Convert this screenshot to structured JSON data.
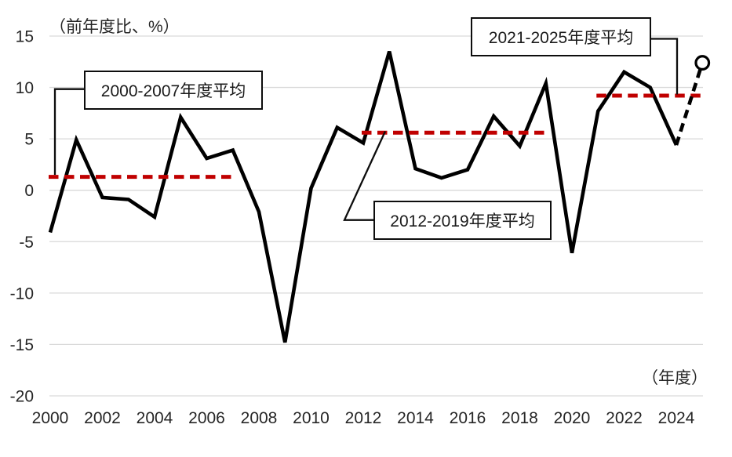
{
  "chart_data": {
    "type": "line",
    "title": "",
    "y_unit_label": "（前年度比、%）",
    "x_unit_label": "（年度）",
    "xlabel": "",
    "ylabel": "",
    "ylim": [
      -20,
      15
    ],
    "yticks": [
      15,
      10,
      5,
      0,
      -5,
      -10,
      -15,
      -20
    ],
    "xticks": [
      2000,
      2002,
      2004,
      2006,
      2008,
      2010,
      2012,
      2014,
      2016,
      2018,
      2020,
      2022,
      2024
    ],
    "grid": "horizontal",
    "legend": "none",
    "years": [
      2000,
      2001,
      2002,
      2003,
      2004,
      2005,
      2006,
      2007,
      2008,
      2009,
      2010,
      2011,
      2012,
      2013,
      2014,
      2015,
      2016,
      2017,
      2018,
      2019,
      2020,
      2021,
      2022,
      2023,
      2024
    ],
    "values": [
      -4.1,
      4.9,
      -0.7,
      -0.9,
      -2.6,
      7.1,
      3.1,
      3.9,
      -2.1,
      -14.8,
      0.2,
      6.1,
      4.6,
      13.5,
      2.1,
      1.2,
      2.0,
      7.2,
      4.3,
      10.4,
      -6.1,
      7.7,
      11.5,
      10.0,
      4.4
    ],
    "forecast": {
      "year": 2025,
      "value": 12.4,
      "style": "dashed-open-circle"
    },
    "averages": [
      {
        "label": "2000-2007年度平均",
        "from_year": 2000,
        "to_year": 2007,
        "value": 1.3
      },
      {
        "label": "2012-2019年度平均",
        "from_year": 2012,
        "to_year": 2019,
        "value": 5.6
      },
      {
        "label": "2021-2025年度平均",
        "from_year": 2021,
        "to_year": 2025,
        "value": 9.2
      }
    ],
    "colors": {
      "series": "#000000",
      "forecast": "#000000",
      "average_line": "#c00000",
      "grid": "#d9d9d9",
      "text": "#262626",
      "annotation_border": "#0d0d0d",
      "background": "#ffffff"
    }
  }
}
